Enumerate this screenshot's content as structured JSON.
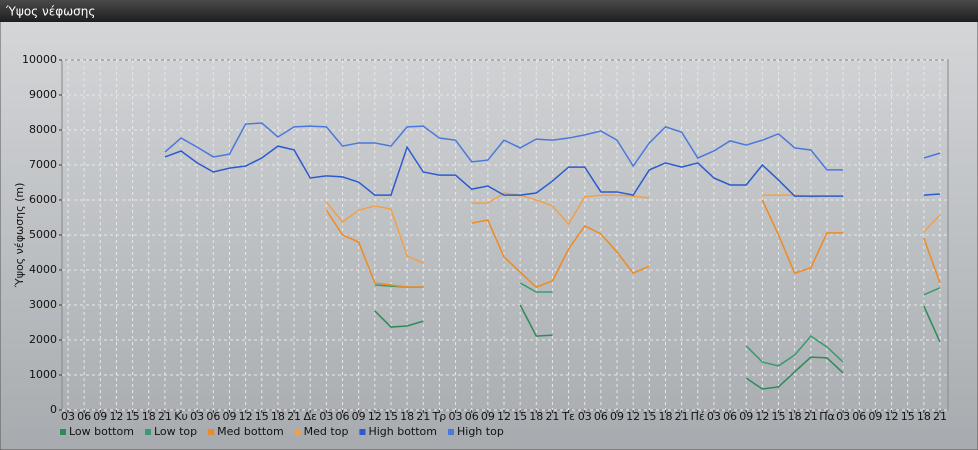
{
  "chart_data": {
    "type": "line",
    "title": "Ύψος νέφωσης",
    "y_label": "Ύψος νέφωσης (m)",
    "categories": [
      "03",
      "06",
      "09",
      "12",
      "15",
      "18",
      "21",
      "Κυ",
      "03",
      "06",
      "09",
      "12",
      "15",
      "18",
      "21",
      "Δε",
      "03",
      "06",
      "09",
      "12",
      "15",
      "18",
      "21",
      "Τρ",
      "03",
      "06",
      "09",
      "12",
      "15",
      "18",
      "21",
      "Τε",
      "03",
      "06",
      "09",
      "12",
      "15",
      "18",
      "21",
      "Πέ",
      "03",
      "06",
      "09",
      "12",
      "15",
      "18",
      "21",
      "Πα",
      "03",
      "06",
      "09",
      "12",
      "15",
      "18",
      "21"
    ],
    "ylim": [
      0,
      10000
    ],
    "yticks": [
      0,
      1000,
      2000,
      3000,
      4000,
      5000,
      6000,
      7000,
      8000,
      9000,
      10000
    ],
    "grid": true,
    "legend": "bottom",
    "series": [
      {
        "name": "Low bottom",
        "color": "#2e8b57",
        "values": [
          null,
          null,
          null,
          null,
          null,
          null,
          null,
          null,
          null,
          null,
          null,
          null,
          null,
          null,
          null,
          null,
          null,
          null,
          null,
          2830,
          2370,
          2400,
          2540,
          null,
          null,
          null,
          null,
          null,
          3000,
          2110,
          2140,
          null,
          null,
          null,
          null,
          null,
          null,
          null,
          null,
          null,
          null,
          null,
          910,
          600,
          660,
          1090,
          1510,
          1490,
          1060,
          null,
          null,
          null,
          null,
          2970,
          1940
        ]
      },
      {
        "name": "Low top",
        "color": "#3a9a6e",
        "values": [
          null,
          null,
          null,
          null,
          null,
          null,
          null,
          null,
          null,
          null,
          null,
          null,
          null,
          null,
          null,
          null,
          null,
          null,
          null,
          3570,
          3540,
          3510,
          3510,
          null,
          null,
          null,
          null,
          null,
          3630,
          3370,
          3370,
          null,
          null,
          null,
          null,
          null,
          null,
          null,
          null,
          null,
          null,
          null,
          1830,
          1370,
          1260,
          1570,
          2110,
          1800,
          1370,
          null,
          null,
          null,
          null,
          3290,
          3490
        ]
      },
      {
        "name": "Med bottom",
        "color": "#ef8a22",
        "values": [
          null,
          null,
          null,
          null,
          null,
          null,
          null,
          null,
          null,
          null,
          null,
          null,
          null,
          null,
          null,
          null,
          5710,
          5000,
          4800,
          3630,
          3570,
          3510,
          3510,
          null,
          null,
          5340,
          5430,
          4370,
          3940,
          3510,
          3690,
          4600,
          5260,
          5030,
          4510,
          3910,
          4110,
          null,
          null,
          null,
          null,
          null,
          null,
          6000,
          5000,
          3910,
          4060,
          5060,
          5060,
          null,
          null,
          null,
          null,
          4910,
          3630
        ]
      },
      {
        "name": "Med top",
        "color": "#f2a048",
        "values": [
          null,
          null,
          null,
          null,
          null,
          null,
          null,
          null,
          null,
          null,
          null,
          null,
          null,
          null,
          null,
          null,
          5940,
          5370,
          5710,
          5830,
          5740,
          4400,
          4200,
          null,
          null,
          5910,
          5910,
          6200,
          6140,
          6000,
          5830,
          5310,
          6090,
          6140,
          6140,
          6110,
          6060,
          null,
          null,
          null,
          null,
          null,
          null,
          6140,
          6140,
          6140,
          6090,
          6110,
          null,
          null,
          null,
          null,
          null,
          5090,
          5570
        ]
      },
      {
        "name": "High bottom",
        "color": "#2a5bd0",
        "values": [
          null,
          null,
          null,
          null,
          null,
          null,
          7230,
          7400,
          7060,
          6800,
          6910,
          6970,
          7200,
          7540,
          7430,
          6630,
          6690,
          6660,
          6510,
          6140,
          6140,
          7510,
          6800,
          6710,
          6710,
          6310,
          6400,
          6140,
          6140,
          6200,
          6540,
          6940,
          6940,
          6230,
          6230,
          6140,
          6860,
          7060,
          6940,
          7060,
          6630,
          6430,
          6430,
          7000,
          6570,
          6110,
          6110,
          6110,
          6110,
          null,
          null,
          null,
          null,
          6140,
          6170
        ]
      },
      {
        "name": "High top",
        "color": "#4a78dc",
        "values": [
          null,
          null,
          null,
          null,
          null,
          null,
          7370,
          7770,
          7510,
          7230,
          7310,
          8170,
          8200,
          7800,
          8090,
          8110,
          8090,
          7540,
          7630,
          7630,
          7540,
          8090,
          8110,
          7770,
          7710,
          7090,
          7140,
          7710,
          7490,
          7740,
          7710,
          7770,
          7860,
          7970,
          7710,
          6970,
          7630,
          8090,
          7940,
          7200,
          7400,
          7690,
          7570,
          7710,
          7890,
          7490,
          7430,
          6860,
          6860,
          null,
          null,
          null,
          null,
          7200,
          7340
        ]
      }
    ]
  }
}
